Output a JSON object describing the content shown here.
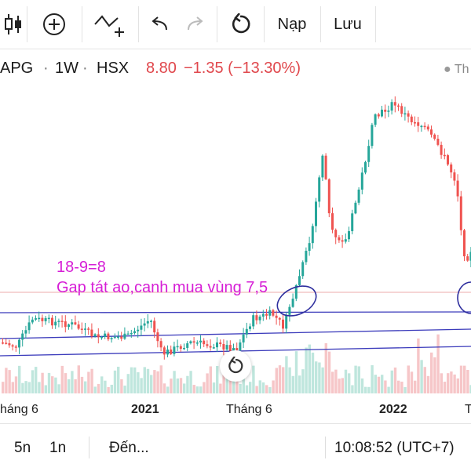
{
  "toolbar": {
    "candles_icon": "candlestick-icon",
    "add_icon": "plus-circle-icon",
    "indicators_icon": "indicator-add-icon",
    "undo_icon": "undo-icon",
    "redo_icon": "redo-icon",
    "reload_icon": "reload-icon",
    "load_label": "Nạp",
    "save_label": "Lưu"
  },
  "symbol": {
    "ticker": "APG",
    "interval": "1W",
    "exchange": "HSX",
    "price": "8.80",
    "change": "−1.35 (−13.30%)",
    "status_text": "Th",
    "separator": "·"
  },
  "annotations": {
    "line1": "18-9=8",
    "line2": "Gap tát ao,canh mua vùng 7,5"
  },
  "x_axis": {
    "labels": [
      "háng 6",
      "2021",
      "Tháng 6",
      "2022",
      "T"
    ]
  },
  "bottom_bar": {
    "range_5n": "5n",
    "range_1n": "1n",
    "goto": "Đến...",
    "clock": "10:08:52 (UTC+7)"
  },
  "colors": {
    "up": "#26a69a",
    "down": "#ef5350",
    "annotation": "#d61ed6",
    "trendline": "#3b3bbb",
    "price_change": "#e0474c"
  }
}
